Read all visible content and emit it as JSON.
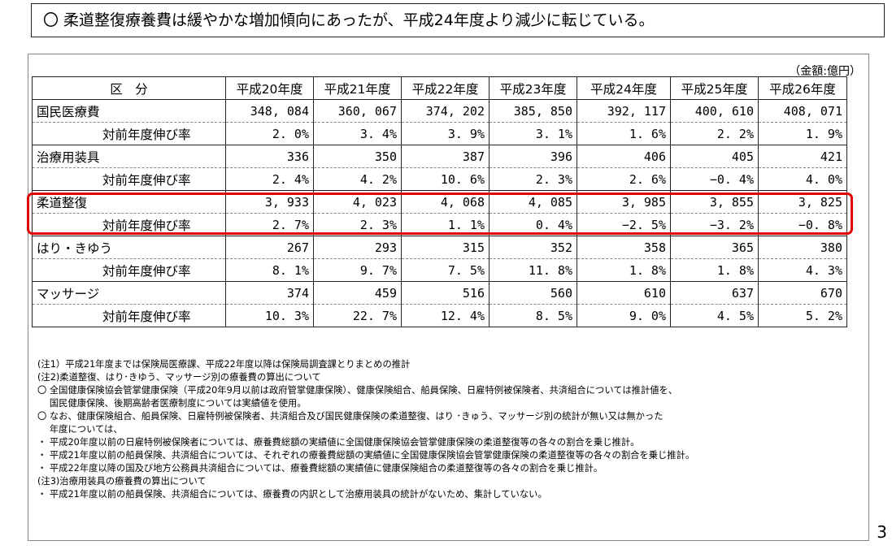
{
  "headline": "〇 柔道整復療養費は緩やかな増加傾向にあったが、平成24年度より減少に転じている。",
  "unit_label": "（金額:億円）",
  "table": {
    "header_label": "区　分",
    "years": [
      "平成20年度",
      "平成21年度",
      "平成22年度",
      "平成23年度",
      "平成24年度",
      "平成25年度",
      "平成26年度"
    ],
    "rate_label": "対前年度伸び率",
    "rows": [
      {
        "name": "国民医療費",
        "values": [
          "348, 084",
          "360, 067",
          "374, 202",
          "385, 850",
          "392, 117",
          "400, 610",
          "408, 071"
        ],
        "rates": [
          "2. 0%",
          "3. 4%",
          "3. 9%",
          "3. 1%",
          "1. 6%",
          "2. 2%",
          "1. 9%"
        ]
      },
      {
        "name": "治療用装具",
        "values": [
          "336",
          "350",
          "387",
          "396",
          "406",
          "405",
          "421"
        ],
        "rates": [
          "2. 4%",
          "4. 2%",
          "10. 6%",
          "2. 3%",
          "2. 6%",
          "−0. 4%",
          "4. 0%"
        ]
      },
      {
        "name": "柔道整復",
        "values": [
          "3, 933",
          "4, 023",
          "4, 068",
          "4, 085",
          "3, 985",
          "3, 855",
          "3, 825"
        ],
        "rates": [
          "2. 7%",
          "2. 3%",
          "1. 1%",
          "0. 4%",
          "−2. 5%",
          "−3. 2%",
          "−0. 8%"
        ]
      },
      {
        "name": "はり・きゆう",
        "values": [
          "267",
          "293",
          "315",
          "352",
          "358",
          "365",
          "380"
        ],
        "rates": [
          "8. 1%",
          "9. 7%",
          "7. 5%",
          "11. 8%",
          "1. 8%",
          "1. 8%",
          "4. 3%"
        ]
      },
      {
        "name": "マッサージ",
        "values": [
          "374",
          "459",
          "516",
          "560",
          "610",
          "637",
          "670"
        ],
        "rates": [
          "10. 3%",
          "22. 7%",
          "12. 4%",
          "8. 5%",
          "9. 0%",
          "4. 5%",
          "5. 2%"
        ]
      }
    ]
  },
  "notes": [
    "(注1）平成21年度までは保険局医療課、平成22年度以降は保険局調査課とりまとめの推計",
    "(注2)柔道整復、はり･きゆう、マッサージ別の療養費の算出について",
    "〇 全国健康保険協会管掌健康保険（平成20年9月以前は政府管掌健康保険）、健康保険組合、船員保険、日雇特例被保険者、共済組合については推計値を、",
    "　 国民健康保険、後期高齢者医療制度については実績値を使用。",
    "〇 なお、健康保険組合、船員保険、日雇特例被保険者、共済組合及び国民健康保険の柔道整復、はり ･きゅう、マッサージ別の統計が無い又は無かった",
    "　 年度については、",
    "・ 平成20年度以前の日雇特例被保険者については、療養費総額の実績値に全国健康保険協会管掌健康保険の柔道整復等の各々の割合を乗じ推計。",
    "・ 平成21年度以前の船員保険、共済組合については、それぞれの療養費総額の実績値に全国健康保険協会管掌健康保険の柔道整復等の各々の割合を乗じ推計。",
    "・ 平成22年度以降の国及び地方公務員共済組合については、療養費総額の実績値に健康保険組合の柔道整復等の各々の割合を乗じ推計。",
    "(注3)治療用装具の療養費の算出について",
    "・ 平成21年度以前の船員保険、共済組合については、療養費の内訳として治療用装具の統計がないため、集計していない。"
  ],
  "page_number": "3",
  "highlight_color": "#e00000"
}
